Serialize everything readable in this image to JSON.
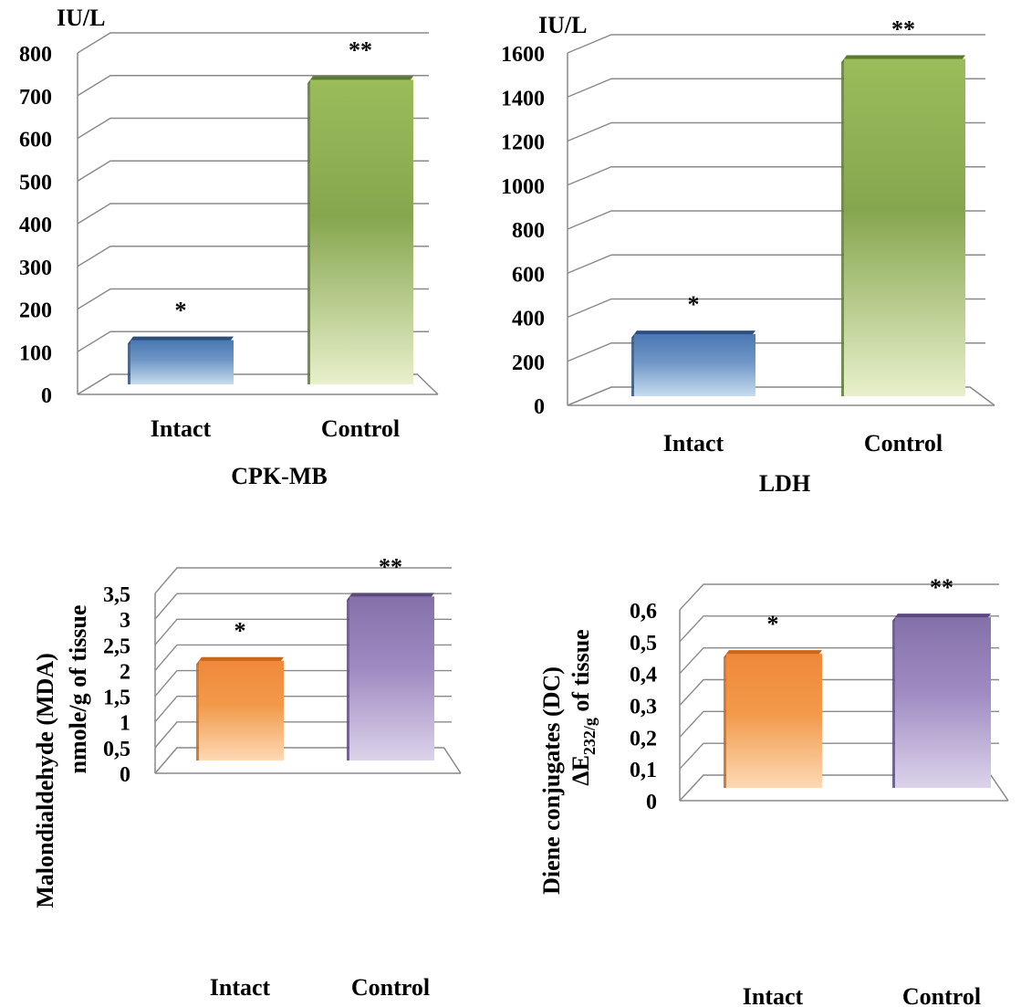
{
  "chart_data": [
    {
      "id": "cpk",
      "type": "bar",
      "title": "CPK-MB",
      "unit": "IU/L",
      "ylabel": [],
      "categories": [
        "Intact",
        "Control"
      ],
      "values": [
        95,
        705
      ],
      "annotations": [
        "*",
        "**"
      ],
      "ylim": [
        0,
        800
      ],
      "yticks": [
        0,
        100,
        200,
        300,
        400,
        500,
        600,
        700,
        800
      ],
      "ytick_labels": [
        "0",
        "100",
        "200",
        "300",
        "400",
        "500",
        "600",
        "700",
        "800"
      ],
      "colors": [
        {
          "top": "#2d4f7a",
          "light": "#c7dcef",
          "dark": "#6f96c6",
          "face": "#4a78b3"
        },
        {
          "top": "#5a7a30",
          "light": "#e8f0cc",
          "dark": "#86a64e",
          "face": "#9bbc5a"
        }
      ],
      "grid": true
    },
    {
      "id": "ldh",
      "type": "bar",
      "title": "LDH",
      "unit": "IU/L",
      "ylabel": [],
      "categories": [
        "Intact",
        "Control"
      ],
      "values": [
        265,
        1515
      ],
      "annotations": [
        "*",
        "**"
      ],
      "ylim": [
        0,
        1600
      ],
      "yticks": [
        0,
        200,
        400,
        600,
        800,
        1000,
        1200,
        1400,
        1600
      ],
      "ytick_labels": [
        "0",
        "200",
        "400",
        "600",
        "800",
        "1000",
        "1200",
        "1400",
        "1600"
      ],
      "colors": [
        {
          "top": "#2d4f7a",
          "light": "#c7dcef",
          "dark": "#6f96c6",
          "face": "#4a78b3"
        },
        {
          "top": "#5a7a30",
          "light": "#e8f0cc",
          "dark": "#86a64e",
          "face": "#9bbc5a"
        }
      ],
      "grid": true
    },
    {
      "id": "mda",
      "type": "bar",
      "title": "",
      "unit": "",
      "ylabel": [
        "Malondialdehyde (MDA)",
        "nmole/g of tissue"
      ],
      "categories": [
        "Intact",
        "Control"
      ],
      "values": [
        1.87,
        3.12
      ],
      "annotations": [
        "*",
        "**"
      ],
      "ylim": [
        0,
        3.5
      ],
      "yticks": [
        0,
        0.5,
        1,
        1.5,
        2,
        2.5,
        3,
        3.5
      ],
      "ytick_labels": [
        "0",
        "0,5",
        "1",
        "1,5",
        "2",
        "2,5",
        "3",
        "3,5"
      ],
      "colors": [
        {
          "top": "#c8661a",
          "light": "#fdd9b5",
          "dark": "#f29a4a",
          "face": "#f0883a"
        },
        {
          "top": "#5b4a80",
          "light": "#dcd3ea",
          "dark": "#a08cc3",
          "face": "#8571a9"
        }
      ],
      "grid": true
    },
    {
      "id": "dc",
      "type": "bar",
      "title": "",
      "unit": "",
      "ylabel": [
        "Diene conjugates (DC)",
        "ΔE",
        "232/g",
        " of tissue"
      ],
      "categories": [
        "Intact",
        "Control"
      ],
      "values": [
        0.41,
        0.525
      ],
      "annotations": [
        "*",
        "**"
      ],
      "ylim": [
        0,
        0.6
      ],
      "yticks": [
        0,
        0.1,
        0.2,
        0.3,
        0.4,
        0.5,
        0.6
      ],
      "ytick_labels": [
        "0",
        "0,1",
        "0,2",
        "0,3",
        "0,4",
        "0,5",
        "0,6"
      ],
      "colors": [
        {
          "top": "#c8661a",
          "light": "#fdd9b5",
          "dark": "#f29a4a",
          "face": "#f0883a"
        },
        {
          "top": "#5b4a80",
          "light": "#dcd3ea",
          "dark": "#a08cc3",
          "face": "#8571a9"
        }
      ],
      "grid": true
    }
  ]
}
